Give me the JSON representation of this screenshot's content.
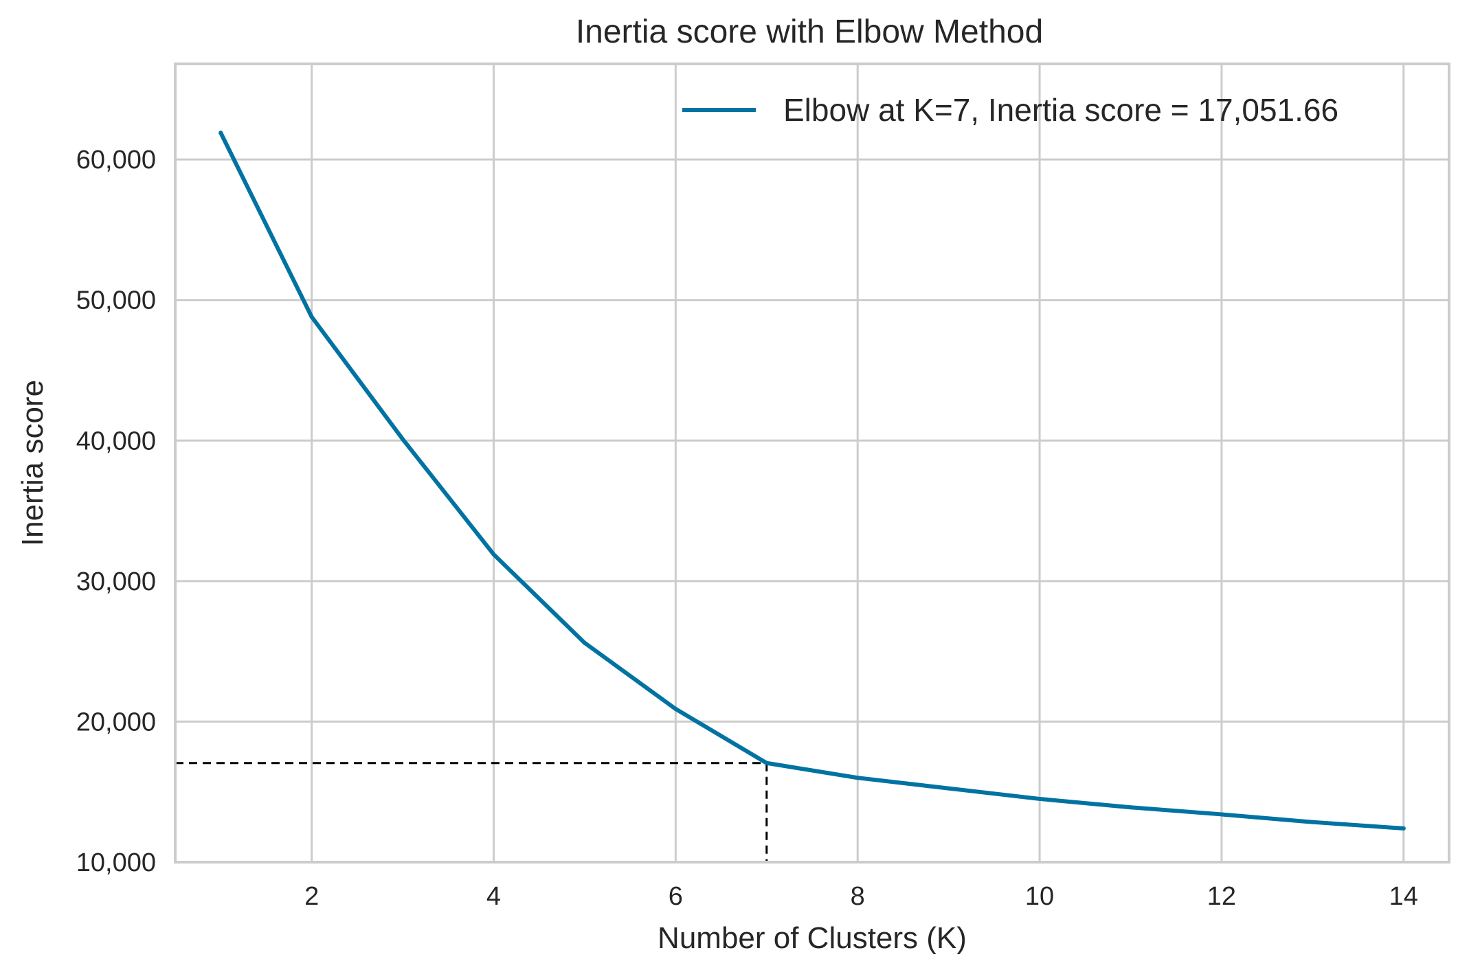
{
  "chart_data": {
    "type": "line",
    "title": "Inertia score with Elbow Method",
    "xlabel": "Number of Clusters (K)",
    "ylabel": "Inertia score",
    "xlim": [
      0.5,
      14.5
    ],
    "ylim": [
      10000,
      66800
    ],
    "x_ticks": [
      2,
      4,
      6,
      8,
      10,
      12,
      14
    ],
    "x_tick_labels": [
      "2",
      "4",
      "6",
      "8",
      "10",
      "12",
      "14"
    ],
    "y_ticks": [
      10000,
      20000,
      30000,
      40000,
      50000,
      60000
    ],
    "y_tick_labels": [
      "10,000",
      "20,000",
      "30,000",
      "40,000",
      "50,000",
      "60,000"
    ],
    "grid": true,
    "legend_position": "top-right",
    "series": [
      {
        "name": "Elbow at K=7, Inertia score = 17,051.66",
        "color": "#0173a2",
        "x": [
          1,
          2,
          3,
          4,
          5,
          6,
          7,
          8,
          9,
          10,
          11,
          12,
          13,
          14
        ],
        "values": [
          61900,
          48800,
          40100,
          31900,
          25600,
          20900,
          17051.66,
          16000,
          15250,
          14500,
          13900,
          13400,
          12850,
          12400
        ]
      }
    ],
    "elbow": {
      "k": 7,
      "score": 17051.66,
      "color": "#000000"
    }
  }
}
